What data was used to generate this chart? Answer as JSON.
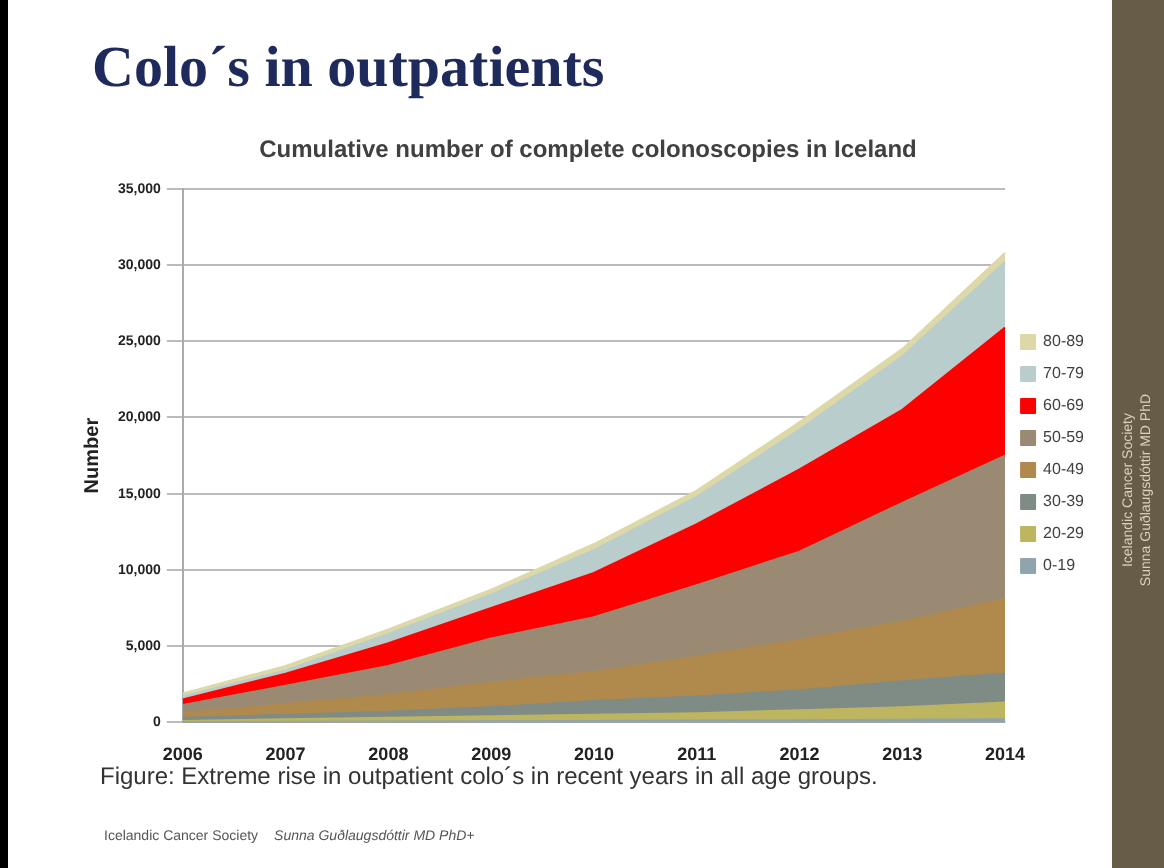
{
  "chart_data": {
    "type": "area",
    "title": "Colo´s in outpatients",
    "subtitle": "Cumulative number of complete colonoscopies in Iceland",
    "ylabel": "Number",
    "categories": [
      "2006",
      "2007",
      "2008",
      "2009",
      "2010",
      "2011",
      "2012",
      "2013",
      "2014"
    ],
    "stacked": true,
    "series": [
      {
        "name": "0-19",
        "color": "#8ea5ad",
        "values": [
          20,
          40,
          60,
          80,
          100,
          120,
          140,
          170,
          200
        ]
      },
      {
        "name": "20-29",
        "color": "#bdb55f",
        "values": [
          80,
          160,
          240,
          320,
          400,
          480,
          660,
          830,
          1100
        ]
      },
      {
        "name": "30-39",
        "color": "#7f8b85",
        "values": [
          200,
          300,
          400,
          600,
          900,
          1100,
          1300,
          1700,
          1900
        ]
      },
      {
        "name": "40-49",
        "color": "#b0894d",
        "values": [
          300,
          700,
          1100,
          1600,
          1900,
          2600,
          3300,
          3900,
          4900
        ]
      },
      {
        "name": "50-59",
        "color": "#9b8a73",
        "values": [
          550,
          1200,
          1900,
          2900,
          3600,
          4700,
          5800,
          7800,
          9400
        ]
      },
      {
        "name": "60-69",
        "color": "#ff0000",
        "values": [
          350,
          800,
          1500,
          2000,
          2900,
          4000,
          5400,
          6100,
          8400
        ]
      },
      {
        "name": "70-79",
        "color": "#b9cdcd",
        "values": [
          200,
          200,
          600,
          900,
          1500,
          1800,
          2600,
          3500,
          4300
        ]
      },
      {
        "name": "80-89",
        "color": "#ddd8a8",
        "values": [
          200,
          300,
          300,
          300,
          400,
          400,
          500,
          500,
          600
        ]
      }
    ],
    "ylim": [
      0,
      35000
    ],
    "yticks": [
      {
        "value": 0,
        "label": "0"
      },
      {
        "value": 5000,
        "label": "5,000"
      },
      {
        "value": 10000,
        "label": "10,000"
      },
      {
        "value": 15000,
        "label": "15,000"
      },
      {
        "value": 20000,
        "label": "20,000"
      },
      {
        "value": 25000,
        "label": "25,000"
      },
      {
        "value": 30000,
        "label": "30,000"
      },
      {
        "value": 35000,
        "label": "35,000"
      }
    ],
    "grid": "y",
    "legend": "right",
    "annotations": [
      "Figure: Extreme rise in outpatient colo´s in recent years in all age groups.",
      "Icelandic Cancer Society",
      "Sunna Guðlaugsdóttir MD PhD+",
      "Icelandic Cancer Society\nSunna Guðlaugsdóttir MD PhD"
    ]
  }
}
